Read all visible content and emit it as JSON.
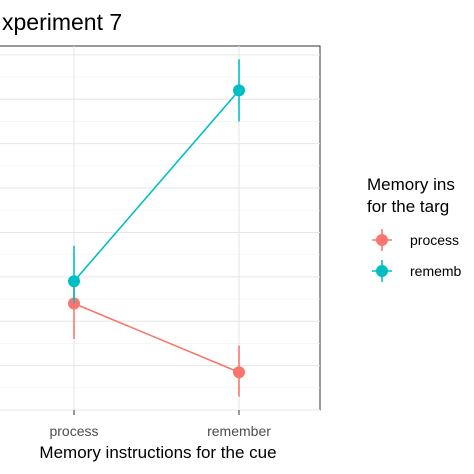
{
  "chart_data": {
    "type": "line",
    "title": "xperiment 7",
    "xlabel": "Memory instructions for the cue",
    "ylabel": "",
    "categories": [
      "process",
      "remember"
    ],
    "ylim": [
      0,
      8.2
    ],
    "grid": true,
    "legend": {
      "title_line1": "Memory ins",
      "title_line2": "for the targ",
      "placement": "right"
    },
    "series": [
      {
        "name": "process",
        "color": "#F8766D",
        "values": [
          2.4,
          0.85
        ],
        "err_low": [
          1.6,
          0.3
        ],
        "err_high": [
          2.9,
          1.45
        ]
      },
      {
        "name": "rememb",
        "color": "#00BFC4",
        "values": [
          2.9,
          7.2
        ],
        "err_low": [
          2.4,
          6.5
        ],
        "err_high": [
          3.7,
          7.9
        ]
      }
    ]
  }
}
